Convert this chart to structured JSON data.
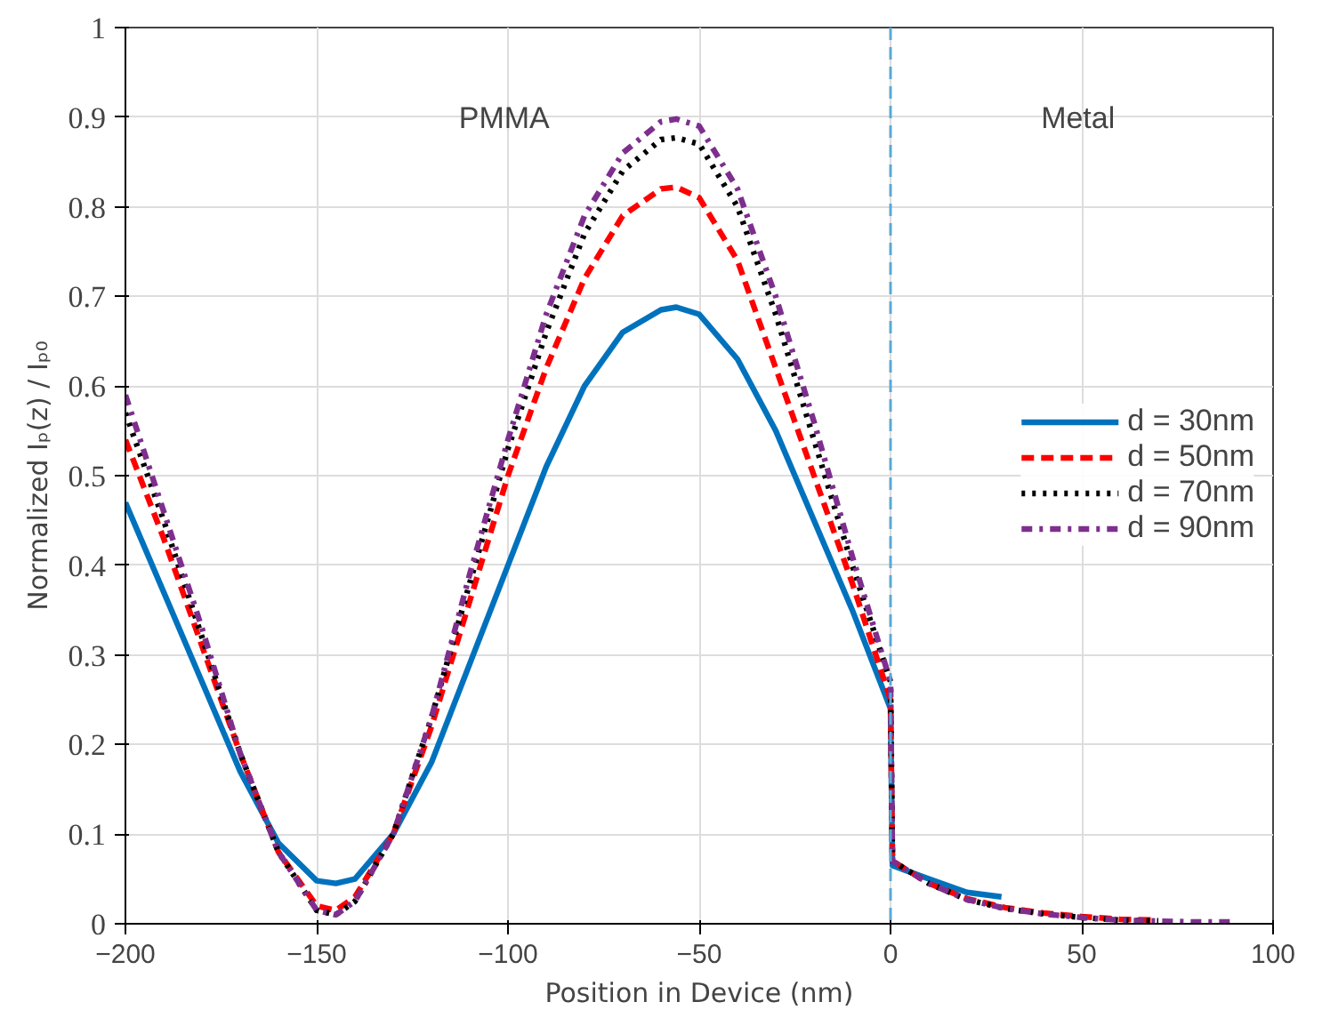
{
  "chart_data": {
    "type": "line",
    "xlabel": "Position in Device (nm)",
    "ylabel": "Normalized Iₚ(z) / Iₚ₀",
    "xlim": [
      -200,
      100
    ],
    "xticks": [
      -200,
      -150,
      -100,
      -50,
      0,
      50,
      100
    ],
    "ylim": [
      0,
      1
    ],
    "yticks": [
      0,
      0.1,
      0.2,
      0.3,
      0.4,
      0.5,
      0.6,
      0.7,
      0.8,
      0.9,
      1
    ],
    "grid": true,
    "legend": "right",
    "marker": "none",
    "series": [
      {
        "name": "d = 30nm",
        "color": "#0072bd",
        "line_style": "solid",
        "x": [
          -200,
          -190,
          -180,
          -170,
          -160,
          -150,
          -145,
          -140,
          -130,
          -120,
          -110,
          -100,
          -90,
          -80,
          -70,
          -60,
          -56,
          -50,
          -40,
          -30,
          -20,
          -10,
          0,
          0.5,
          10,
          20,
          29
        ],
        "values": [
          0.47,
          0.37,
          0.27,
          0.17,
          0.09,
          0.048,
          0.045,
          0.05,
          0.1,
          0.18,
          0.29,
          0.4,
          0.51,
          0.6,
          0.66,
          0.685,
          0.688,
          0.68,
          0.63,
          0.55,
          0.45,
          0.35,
          0.24,
          0.065,
          0.05,
          0.035,
          0.03
        ]
      },
      {
        "name": "d = 50nm",
        "color": "#ff0000",
        "line_style": "dashed",
        "x": [
          -200,
          -190,
          -180,
          -170,
          -160,
          -150,
          -145,
          -140,
          -130,
          -120,
          -110,
          -100,
          -90,
          -80,
          -70,
          -60,
          -56,
          -50,
          -40,
          -30,
          -20,
          -10,
          0,
          0.5,
          10,
          20,
          30,
          40,
          50,
          60,
          70
        ],
        "values": [
          0.54,
          0.43,
          0.31,
          0.19,
          0.08,
          0.02,
          0.015,
          0.03,
          0.1,
          0.22,
          0.36,
          0.5,
          0.62,
          0.72,
          0.79,
          0.82,
          0.822,
          0.81,
          0.74,
          0.62,
          0.5,
          0.38,
          0.25,
          0.07,
          0.045,
          0.028,
          0.018,
          0.012,
          0.008,
          0.005,
          0.004
        ]
      },
      {
        "name": "d = 70nm",
        "color": "#000000",
        "line_style": "dotted",
        "x": [
          -200,
          -190,
          -180,
          -170,
          -160,
          -150,
          -145,
          -140,
          -130,
          -120,
          -110,
          -100,
          -90,
          -80,
          -70,
          -60,
          -56,
          -50,
          -40,
          -30,
          -20,
          -10,
          0,
          0.5,
          10,
          20,
          30,
          40,
          50,
          60,
          70
        ],
        "values": [
          0.57,
          0.45,
          0.32,
          0.19,
          0.08,
          0.015,
          0.01,
          0.025,
          0.1,
          0.23,
          0.38,
          0.53,
          0.66,
          0.77,
          0.84,
          0.875,
          0.877,
          0.87,
          0.8,
          0.68,
          0.54,
          0.4,
          0.27,
          0.07,
          0.045,
          0.027,
          0.017,
          0.011,
          0.007,
          0.004,
          0.003
        ]
      },
      {
        "name": "d = 90nm",
        "color": "#7e2f8e",
        "line_style": "dashdot",
        "x": [
          -200,
          -190,
          -180,
          -170,
          -160,
          -150,
          -145,
          -140,
          -130,
          -120,
          -110,
          -100,
          -90,
          -80,
          -70,
          -60,
          -56,
          -50,
          -40,
          -30,
          -20,
          -10,
          0,
          0.5,
          10,
          20,
          30,
          40,
          50,
          60,
          70,
          80,
          89
        ],
        "values": [
          0.59,
          0.46,
          0.33,
          0.19,
          0.08,
          0.015,
          0.01,
          0.025,
          0.1,
          0.23,
          0.39,
          0.54,
          0.68,
          0.79,
          0.86,
          0.895,
          0.898,
          0.89,
          0.82,
          0.7,
          0.56,
          0.41,
          0.27,
          0.07,
          0.045,
          0.027,
          0.017,
          0.011,
          0.007,
          0.004,
          0.003,
          0.002,
          0.002
        ]
      }
    ],
    "ref_lines": [
      {
        "axis": "x",
        "value": 0,
        "color": "#5aa9d6",
        "line_style": "dashed"
      }
    ],
    "annotations": [
      "PMMA",
      "Metal"
    ]
  }
}
